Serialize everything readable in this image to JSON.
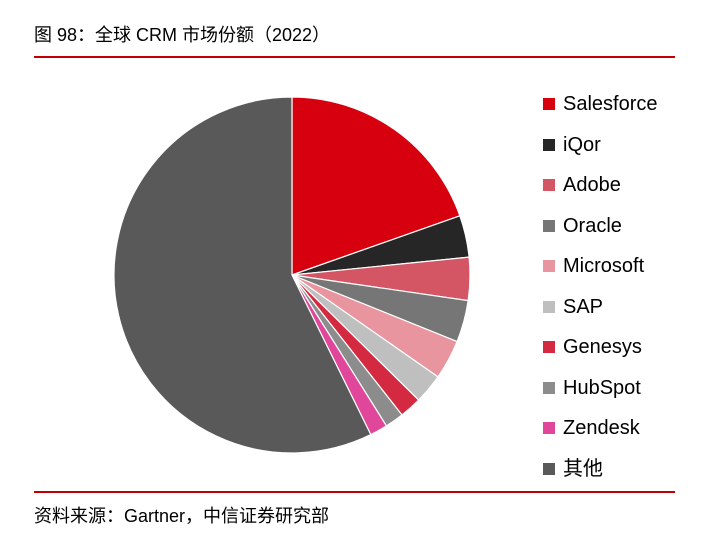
{
  "figure": {
    "title": "图 98：全球 CRM 市场份额（2022）",
    "source": "资料来源：Gartner，中信证券研究部"
  },
  "chart_data": {
    "type": "pie",
    "title": "图 98：全球 CRM 市场份额（2022）",
    "unit": "share of 2022 global CRM market (estimated fractions, values not printed)",
    "start_angle": "12 o'clock",
    "direction": "clockwise",
    "legend_position": "right",
    "slices": [
      {
        "name": "Salesforce",
        "value": 0.196,
        "color": "#d7000f"
      },
      {
        "name": "iQor",
        "value": 0.038,
        "color": "#262626"
      },
      {
        "name": "Adobe",
        "value": 0.039,
        "color": "#d45564"
      },
      {
        "name": "Oracle",
        "value": 0.038,
        "color": "#767676"
      },
      {
        "name": "Microsoft",
        "value": 0.036,
        "color": "#e9959f"
      },
      {
        "name": "SAP",
        "value": 0.027,
        "color": "#bfbfbf"
      },
      {
        "name": "Genesys",
        "value": 0.02,
        "color": "#d42a41"
      },
      {
        "name": "HubSpot",
        "value": 0.017,
        "color": "#8c8c8c"
      },
      {
        "name": "Zendesk",
        "value": 0.016,
        "color": "#e0469a"
      },
      {
        "name": "其他",
        "value": 0.573,
        "color": "#595959"
      }
    ]
  }
}
